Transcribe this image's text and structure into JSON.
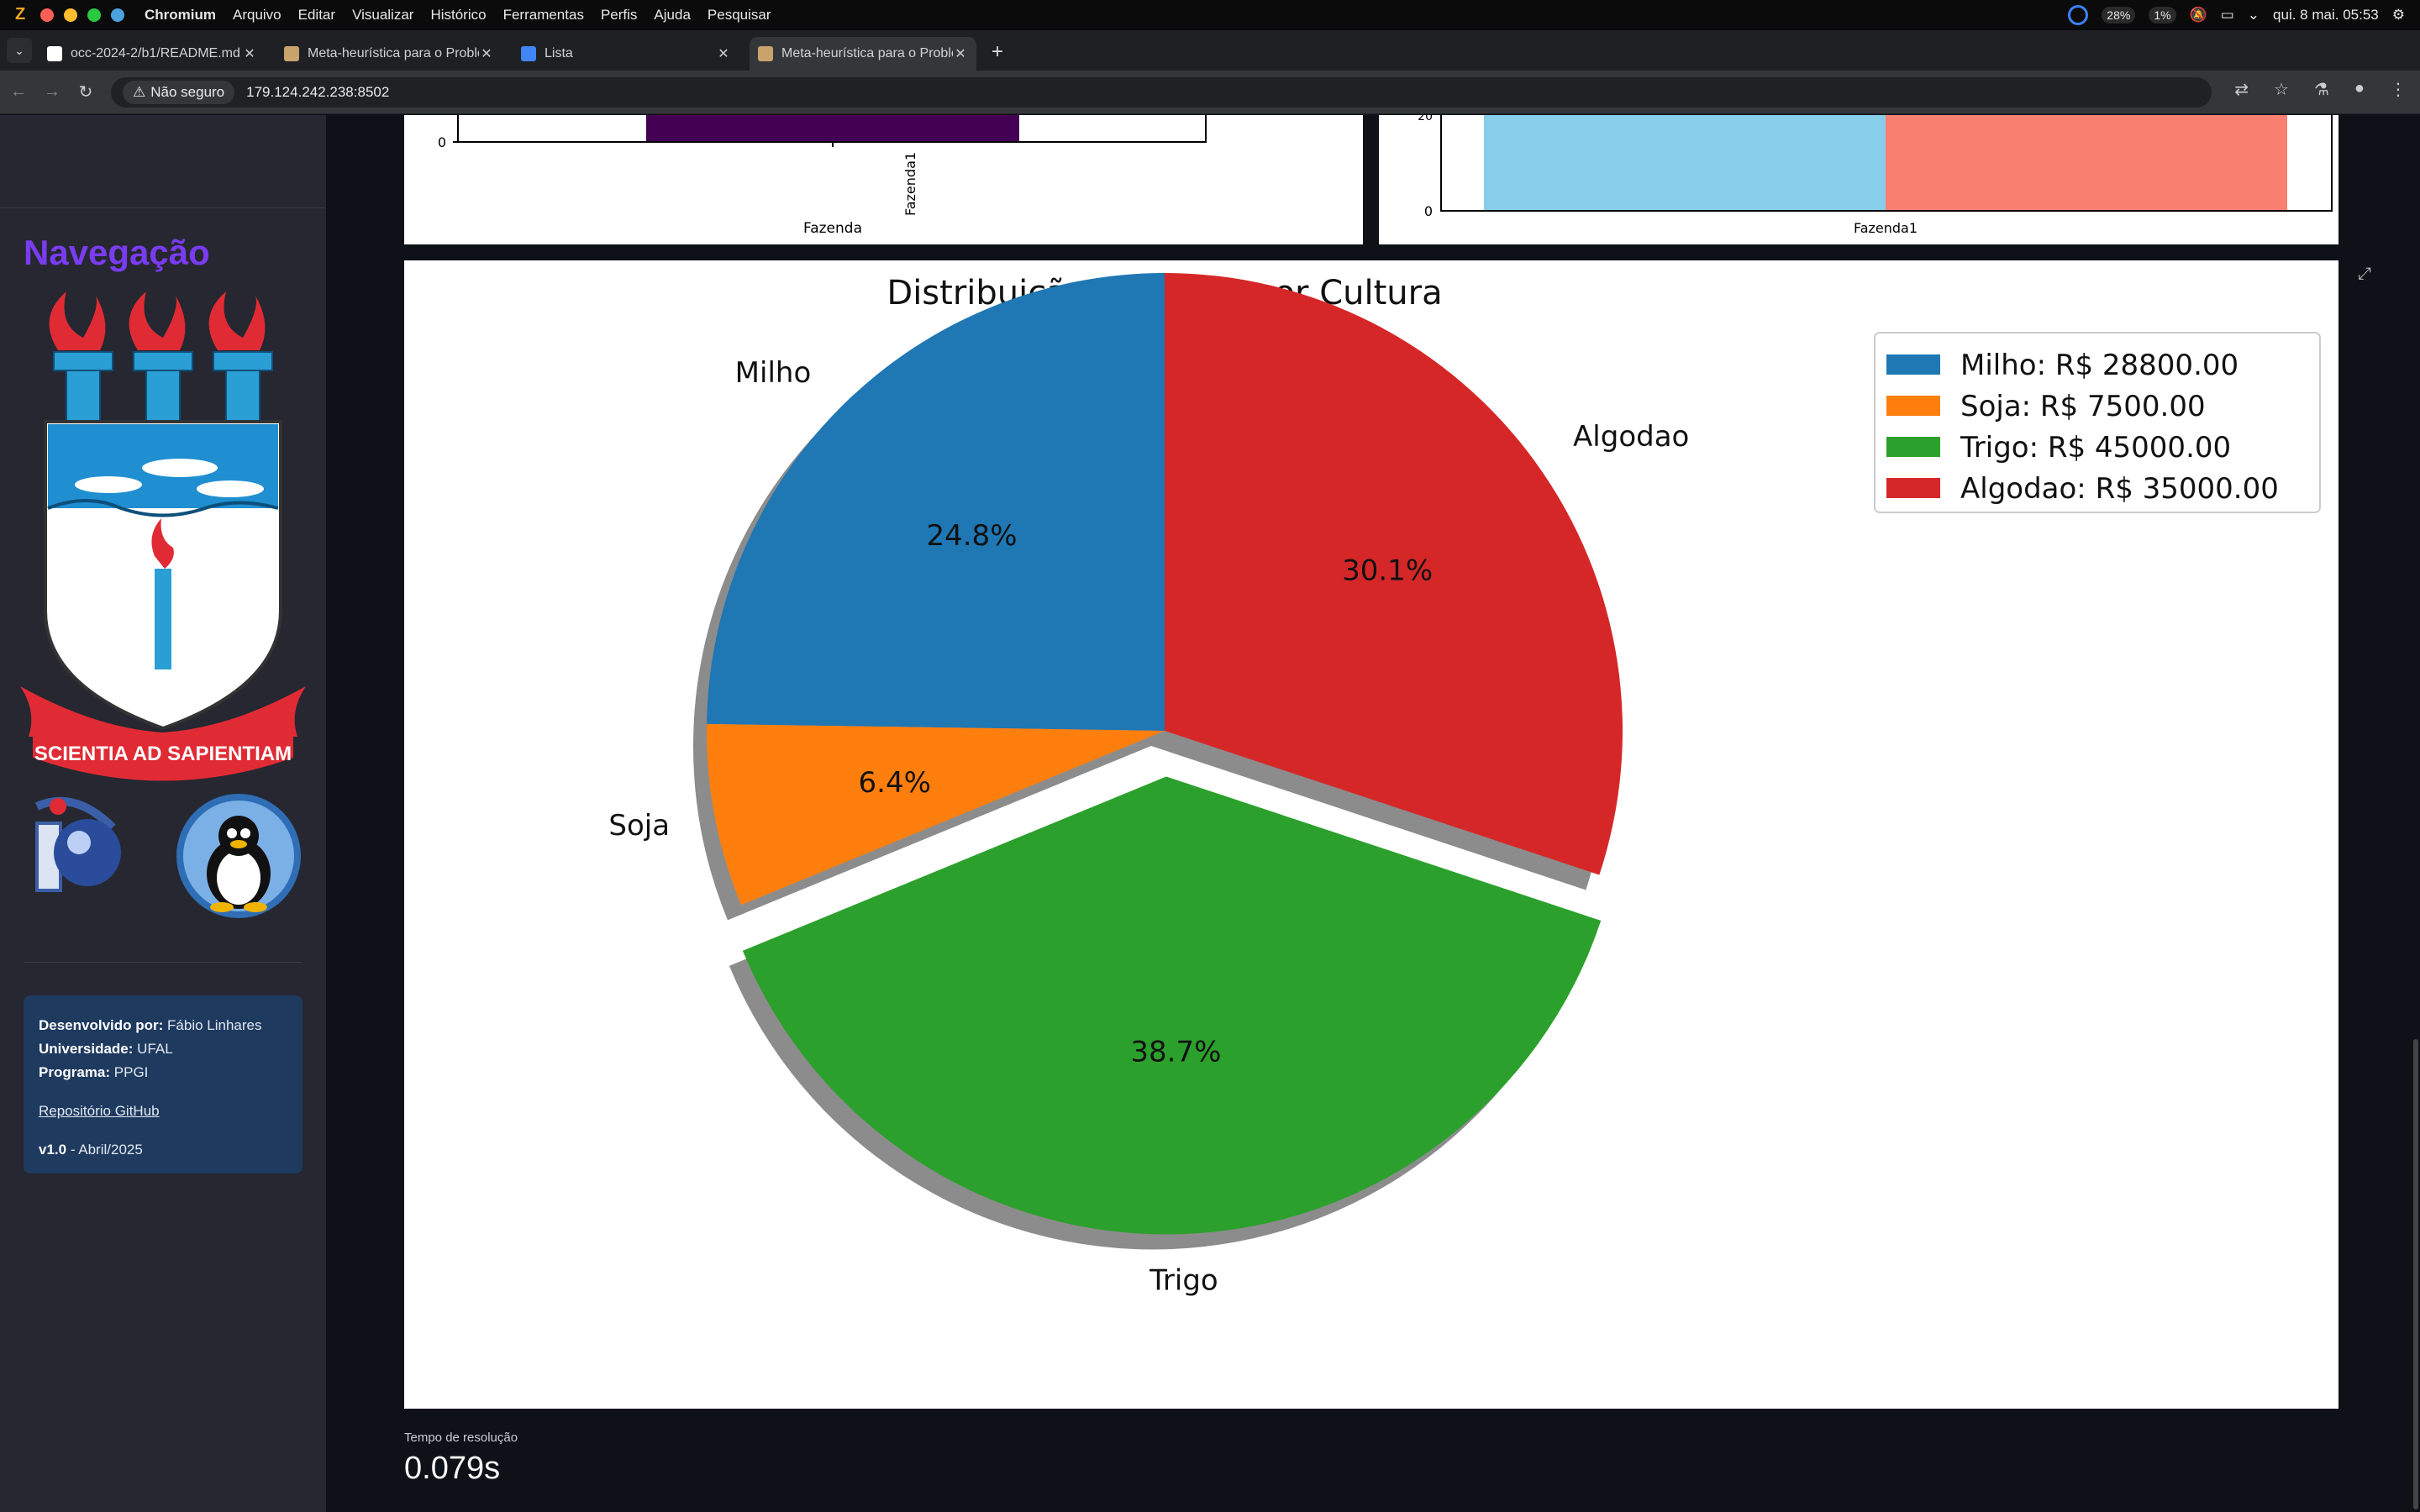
{
  "menubar": {
    "app_name": "Chromium",
    "items": [
      "Arquivo",
      "Editar",
      "Visualizar",
      "Histórico",
      "Ferramentas",
      "Perfis",
      "Ajuda",
      "Pesquisar"
    ],
    "cpu": "28%",
    "mem": "1%",
    "datetime": "qui. 8 mai. 05:53"
  },
  "tabs": [
    {
      "title": "occ-2024-2/b1/README.md",
      "color": "#ffffff"
    },
    {
      "title": "Meta-heurística para o Problema",
      "color": "#c8a36b"
    },
    {
      "title": "Lista",
      "color": "#4285f4"
    },
    {
      "title": "Meta-heurística para o Problema",
      "color": "#c8a36b"
    }
  ],
  "address": {
    "security": "Não seguro",
    "url": "179.124.242.238:8502"
  },
  "sidebar": {
    "nav_title": "Navegação",
    "crest_motto": "SCIENTIA AD SAPIENTIAM",
    "dev_label": "Desenvolvido por:",
    "dev_value": "Fábio Linhares",
    "uni_label": "Universidade:",
    "uni_value": "UFAL",
    "prog_label": "Programa:",
    "prog_value": "PPGI",
    "repo_link": "Repositório GitHub",
    "version": "v1.0",
    "version_date": " - Abril/2025"
  },
  "top_charts": {
    "left_xlabel": "Fazenda",
    "left_tick": "Fazenda1",
    "left_y0": "0",
    "right_tick": "Fazenda1",
    "right_y0": "0",
    "right_y20": "20"
  },
  "metric": {
    "label": "Tempo de resolução",
    "value": "0.079s"
  },
  "chart_data": {
    "type": "pie",
    "title": "Distribuição do Lucro por Cultura",
    "categories": [
      "Milho",
      "Soja",
      "Trigo",
      "Algodao"
    ],
    "values": [
      28800.0,
      7500.0,
      45000.0,
      35000.0
    ],
    "percent_labels": [
      "24.8%",
      "6.4%",
      "38.7%",
      "30.1%"
    ],
    "legend": [
      "Milho: R$ 28800.00",
      "Soja: R$ 7500.00",
      "Trigo: R$ 45000.00",
      "Algodao: R$ 35000.00"
    ],
    "colors": [
      "#1f77b4",
      "#ff7f0e",
      "#2ca02c",
      "#d62728"
    ],
    "explode": [
      0,
      0,
      0.1,
      0
    ],
    "shadow": true,
    "start_angle": 90,
    "legend_position": "upper right"
  }
}
